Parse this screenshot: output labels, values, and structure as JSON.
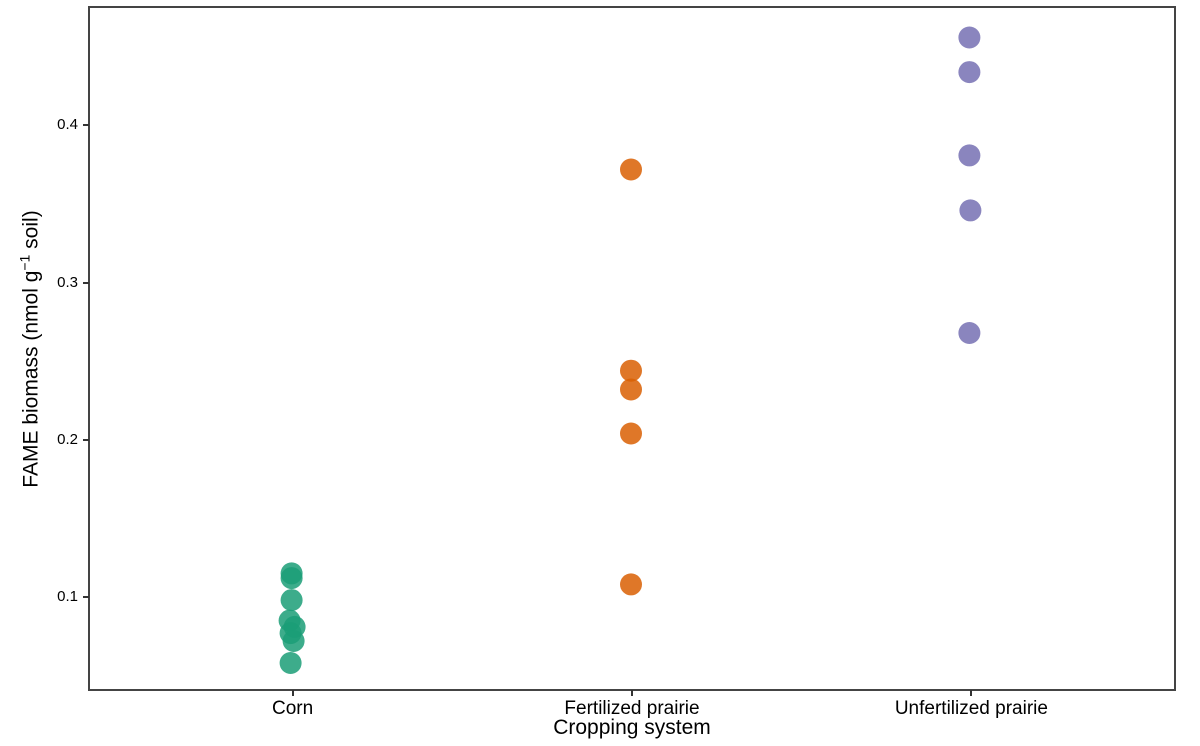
{
  "chart_data": {
    "type": "scatter",
    "subtype": "strip-plot",
    "title": "",
    "xlabel": "Cropping system",
    "ylabel": "FAME biomass (nmol g-1 soil)",
    "ylabel_parts": {
      "prefix": "FAME biomass (nmol g",
      "superscript": "−1",
      "suffix": " soil)"
    },
    "categories": [
      "Corn",
      "Fertilized prairie",
      "Unfertilized prairie"
    ],
    "y_ticks": [
      {
        "value": 0.1,
        "label": "0.1"
      },
      {
        "value": 0.2,
        "label": "0.2"
      },
      {
        "value": 0.3,
        "label": "0.3"
      },
      {
        "value": 0.4,
        "label": "0.4"
      }
    ],
    "ylim": [
      0.041,
      0.475
    ],
    "grid": false,
    "legend": "none",
    "marker": {
      "radius": 11,
      "opacity": 0.85
    },
    "series": [
      {
        "name": "Corn",
        "color": "#1B9E77",
        "points": [
          {
            "y": 0.115,
            "dx": -1
          },
          {
            "y": 0.112,
            "dx": -1
          },
          {
            "y": 0.098,
            "dx": -1
          },
          {
            "y": 0.085,
            "dx": -3
          },
          {
            "y": 0.081,
            "dx": 2
          },
          {
            "y": 0.077,
            "dx": -2
          },
          {
            "y": 0.072,
            "dx": 1
          },
          {
            "y": 0.058,
            "dx": -2
          }
        ]
      },
      {
        "name": "Fertilized prairie",
        "color": "#D95F02",
        "points": [
          {
            "y": 0.372,
            "dx": -1
          },
          {
            "y": 0.244,
            "dx": -1
          },
          {
            "y": 0.232,
            "dx": -1
          },
          {
            "y": 0.204,
            "dx": -1
          },
          {
            "y": 0.108,
            "dx": -1
          }
        ]
      },
      {
        "name": "Unfertilized prairie",
        "color": "#7570B3",
        "points": [
          {
            "y": 0.456,
            "dx": -2
          },
          {
            "y": 0.434,
            "dx": -2
          },
          {
            "y": 0.381,
            "dx": -2
          },
          {
            "y": 0.346,
            "dx": -1
          },
          {
            "y": 0.268,
            "dx": -2
          }
        ]
      }
    ]
  }
}
